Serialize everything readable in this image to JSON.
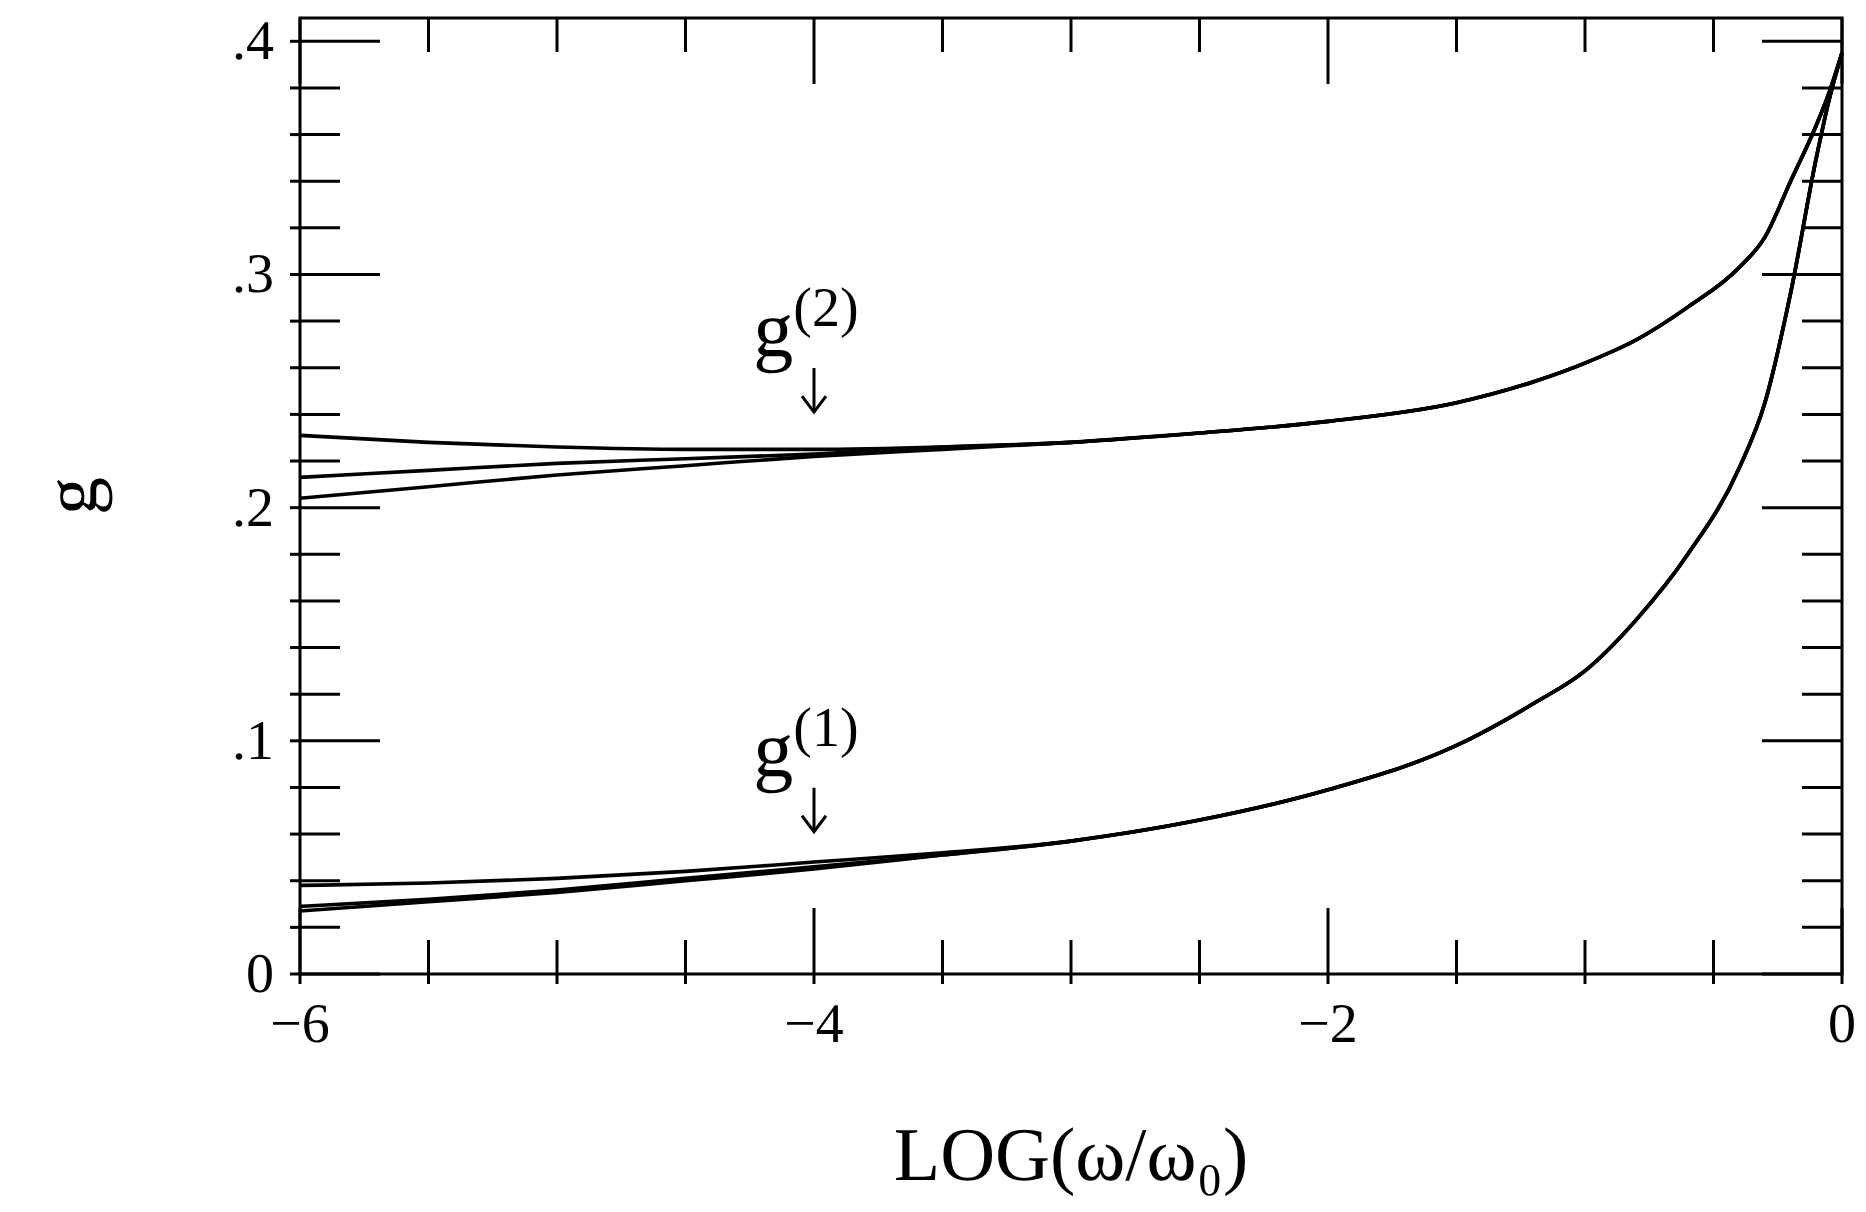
{
  "chart_data": {
    "type": "line",
    "xlabel": "LOG(ω/ω₀)",
    "ylabel": "g",
    "xlim": [
      -6,
      0
    ],
    "ylim": [
      0,
      0.41
    ],
    "xticks": [
      {
        "value": -6,
        "label": "−6"
      },
      {
        "value": -5.5,
        "label": null
      },
      {
        "value": -5,
        "label": null
      },
      {
        "value": -4.5,
        "label": null
      },
      {
        "value": -4,
        "label": "−4"
      },
      {
        "value": -3.5,
        "label": null
      },
      {
        "value": -3,
        "label": null
      },
      {
        "value": -2.5,
        "label": null
      },
      {
        "value": -2,
        "label": "−2"
      },
      {
        "value": -1.5,
        "label": null
      },
      {
        "value": -1,
        "label": null
      },
      {
        "value": -0.5,
        "label": null
      },
      {
        "value": 0,
        "label": "0"
      }
    ],
    "yticks": [
      {
        "value": 0,
        "label": "0"
      },
      {
        "value": 0.02,
        "label": null
      },
      {
        "value": 0.04,
        "label": null
      },
      {
        "value": 0.06,
        "label": null
      },
      {
        "value": 0.08,
        "label": null
      },
      {
        "value": 0.1,
        "label": ".1"
      },
      {
        "value": 0.12,
        "label": null
      },
      {
        "value": 0.14,
        "label": null
      },
      {
        "value": 0.16,
        "label": null
      },
      {
        "value": 0.18,
        "label": null
      },
      {
        "value": 0.2,
        "label": ".2"
      },
      {
        "value": 0.22,
        "label": null
      },
      {
        "value": 0.24,
        "label": null
      },
      {
        "value": 0.26,
        "label": null
      },
      {
        "value": 0.28,
        "label": null
      },
      {
        "value": 0.3,
        "label": ".3"
      },
      {
        "value": 0.32,
        "label": null
      },
      {
        "value": 0.34,
        "label": null
      },
      {
        "value": 0.36,
        "label": null
      },
      {
        "value": 0.38,
        "label": null
      },
      {
        "value": 0.4,
        "label": ".4"
      }
    ],
    "grid": false,
    "marker": "none",
    "line_style": "solid",
    "x": [
      -6,
      -5.5,
      -5,
      -4.5,
      -4,
      -3.5,
      -3,
      -2.5,
      -2,
      -1.5,
      -1.2,
      -1,
      -0.8,
      -0.6,
      -0.4,
      -0.3,
      -0.2,
      -0.1,
      -0.05,
      0
    ],
    "series": [
      {
        "color": "#000000",
        "values": [
          0.231,
          0.228,
          0.226,
          0.225,
          0.225,
          0.226,
          0.228,
          0.232,
          0.237,
          0.245,
          0.254,
          0.262,
          0.272,
          0.286,
          0.303,
          0.316,
          0.34,
          0.364,
          0.378,
          0.395
        ]
      },
      {
        "color": "#000000",
        "values": [
          0.213,
          0.216,
          0.219,
          0.221,
          0.223,
          0.226,
          0.228,
          0.232,
          0.237,
          0.245,
          0.254,
          0.262,
          0.272,
          0.286,
          0.303,
          0.316,
          0.34,
          0.364,
          0.378,
          0.395
        ]
      },
      {
        "color": "#000000",
        "values": [
          0.204,
          0.209,
          0.214,
          0.218,
          0.222,
          0.225,
          0.228,
          0.232,
          0.237,
          0.245,
          0.254,
          0.262,
          0.272,
          0.286,
          0.303,
          0.316,
          0.34,
          0.364,
          0.378,
          0.395
        ]
      },
      {
        "color": "#000000",
        "values": [
          0.038,
          0.039,
          0.041,
          0.044,
          0.048,
          0.052,
          0.057,
          0.066,
          0.079,
          0.098,
          0.116,
          0.13,
          0.152,
          0.18,
          0.217,
          0.245,
          0.292,
          0.35,
          0.375,
          0.395
        ]
      },
      {
        "color": "#000000",
        "values": [
          0.029,
          0.032,
          0.036,
          0.041,
          0.046,
          0.051,
          0.057,
          0.066,
          0.079,
          0.098,
          0.116,
          0.13,
          0.152,
          0.18,
          0.217,
          0.245,
          0.292,
          0.35,
          0.375,
          0.395
        ]
      },
      {
        "color": "#000000",
        "values": [
          0.027,
          0.031,
          0.035,
          0.04,
          0.045,
          0.051,
          0.057,
          0.066,
          0.079,
          0.098,
          0.116,
          0.13,
          0.152,
          0.18,
          0.217,
          0.245,
          0.292,
          0.35,
          0.375,
          0.395
        ]
      }
    ],
    "annotations": [
      "g$^{(2)}$",
      "g$^{(1)}$"
    ]
  }
}
